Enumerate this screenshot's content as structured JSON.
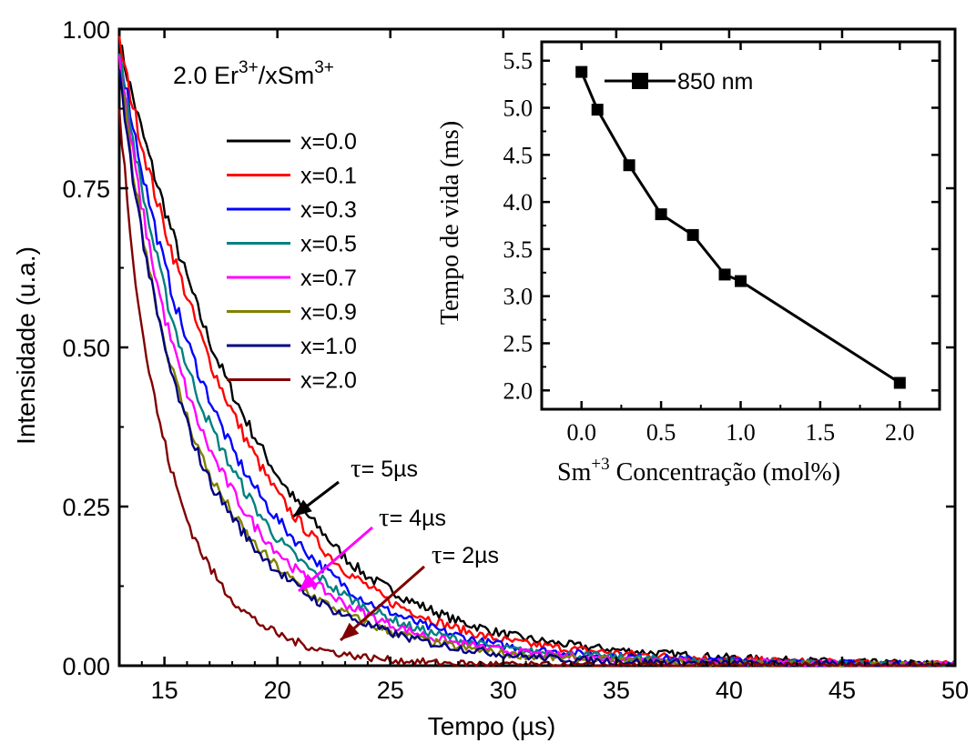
{
  "chart_data": [
    {
      "type": "line",
      "title": "",
      "xlabel": "Tempo (µs)",
      "ylabel": "Intensidade (u.a.)",
      "xlim": [
        13,
        50
      ],
      "ylim": [
        0,
        1.0
      ],
      "xticks": [
        "15",
        "20",
        "25",
        "30",
        "35",
        "40",
        "45",
        "50"
      ],
      "yticks": [
        "0.00",
        "0.25",
        "0.50",
        "0.75",
        "1.00"
      ],
      "legend_title": "2.0 Er3+/xSm3+",
      "legend_placement": "top-left",
      "grid": false,
      "series": [
        {
          "name": "x=0.0",
          "color": "#000000",
          "x": [
            13,
            14,
            15,
            16,
            17,
            18,
            19,
            20,
            21,
            22,
            23,
            24,
            25,
            26,
            27,
            28,
            29,
            30,
            32,
            35,
            40,
            45,
            50
          ],
          "values": [
            0.98,
            0.84,
            0.72,
            0.61,
            0.51,
            0.43,
            0.36,
            0.3,
            0.25,
            0.21,
            0.17,
            0.14,
            0.12,
            0.1,
            0.085,
            0.07,
            0.06,
            0.05,
            0.037,
            0.025,
            0.013,
            0.006,
            0.003
          ]
        },
        {
          "name": "x=0.1",
          "color": "#ff0000",
          "x": [
            13,
            14,
            15,
            16,
            17,
            18,
            19,
            20,
            21,
            22,
            23,
            24,
            25,
            26,
            27,
            28,
            29,
            30,
            32,
            35,
            40,
            45,
            50
          ],
          "values": [
            0.98,
            0.82,
            0.69,
            0.58,
            0.48,
            0.4,
            0.33,
            0.27,
            0.225,
            0.185,
            0.15,
            0.125,
            0.1,
            0.085,
            0.07,
            0.058,
            0.048,
            0.04,
            0.03,
            0.02,
            0.01,
            0.005,
            0.002
          ]
        },
        {
          "name": "x=0.3",
          "color": "#0000ff",
          "x": [
            13,
            14,
            15,
            16,
            17,
            18,
            19,
            20,
            21,
            22,
            23,
            24,
            25,
            26,
            27,
            28,
            29,
            30,
            32,
            35,
            40,
            45,
            50
          ],
          "values": [
            0.97,
            0.78,
            0.63,
            0.51,
            0.42,
            0.34,
            0.28,
            0.23,
            0.19,
            0.155,
            0.125,
            0.1,
            0.085,
            0.07,
            0.057,
            0.047,
            0.038,
            0.032,
            0.023,
            0.015,
            0.008,
            0.004,
            0.002
          ]
        },
        {
          "name": "x=0.5",
          "color": "#008080",
          "x": [
            13,
            14,
            15,
            16,
            17,
            18,
            19,
            20,
            21,
            22,
            23,
            24,
            25,
            26,
            27,
            28,
            29,
            30,
            32,
            35,
            40,
            45,
            50
          ],
          "values": [
            0.96,
            0.75,
            0.59,
            0.47,
            0.38,
            0.31,
            0.25,
            0.2,
            0.165,
            0.135,
            0.11,
            0.09,
            0.074,
            0.06,
            0.05,
            0.041,
            0.033,
            0.027,
            0.02,
            0.013,
            0.007,
            0.003,
            0.001
          ]
        },
        {
          "name": "x=0.7",
          "color": "#ff00ff",
          "x": [
            13,
            14,
            15,
            16,
            17,
            18,
            19,
            20,
            21,
            22,
            23,
            24,
            25,
            26,
            27,
            28,
            29,
            30,
            32,
            35,
            40,
            45,
            50
          ],
          "values": [
            0.95,
            0.72,
            0.55,
            0.43,
            0.34,
            0.275,
            0.22,
            0.18,
            0.145,
            0.12,
            0.097,
            0.08,
            0.065,
            0.053,
            0.043,
            0.035,
            0.029,
            0.024,
            0.017,
            0.011,
            0.006,
            0.003,
            0.001
          ]
        },
        {
          "name": "x=0.9",
          "color": "#808000",
          "x": [
            13,
            14,
            15,
            16,
            17,
            18,
            19,
            20,
            21,
            22,
            23,
            24,
            25,
            26,
            27,
            28,
            29,
            30,
            32,
            35,
            40,
            45,
            50
          ],
          "values": [
            0.94,
            0.69,
            0.51,
            0.39,
            0.3,
            0.24,
            0.19,
            0.155,
            0.125,
            0.1,
            0.082,
            0.066,
            0.054,
            0.044,
            0.036,
            0.029,
            0.024,
            0.019,
            0.013,
            0.008,
            0.004,
            0.002,
            0.001
          ]
        },
        {
          "name": "x=1.0",
          "color": "#000080",
          "x": [
            13,
            14,
            15,
            16,
            17,
            18,
            19,
            20,
            21,
            22,
            23,
            24,
            25,
            26,
            27,
            28,
            29,
            30,
            32,
            35,
            40,
            45,
            50
          ],
          "values": [
            0.93,
            0.68,
            0.5,
            0.38,
            0.29,
            0.235,
            0.185,
            0.15,
            0.12,
            0.097,
            0.079,
            0.064,
            0.052,
            0.042,
            0.034,
            0.028,
            0.023,
            0.018,
            0.012,
            0.007,
            0.004,
            0.002,
            0.001
          ]
        },
        {
          "name": "x=2.0",
          "color": "#800000",
          "x": [
            13,
            14,
            15,
            16,
            17,
            18,
            19,
            20,
            21,
            22,
            23,
            24,
            25,
            26,
            27,
            28,
            29,
            30,
            32,
            35,
            40,
            45,
            50
          ],
          "values": [
            0.88,
            0.53,
            0.35,
            0.23,
            0.155,
            0.105,
            0.072,
            0.05,
            0.035,
            0.025,
            0.018,
            0.013,
            0.009,
            0.007,
            0.005,
            0.004,
            0.003,
            0.002,
            0.001,
            0.0,
            0.0,
            0.0,
            0.0
          ]
        }
      ],
      "annotations": [
        {
          "text": "τ= 5µs",
          "color": "#000000"
        },
        {
          "text": "τ= 4µs",
          "color": "#ff00ff"
        },
        {
          "text": "τ= 2µs",
          "color": "#800000"
        }
      ]
    },
    {
      "type": "line",
      "title": "",
      "xlabel": "Sm+3 Concentração (mol%)",
      "ylabel": "Tempo de vida (ms)",
      "xlim": [
        -0.25,
        2.25
      ],
      "ylim": [
        1.8,
        5.7
      ],
      "xticks": [
        "0.0",
        "0.5",
        "1.0",
        "1.5",
        "2.0"
      ],
      "yticks": [
        "2.0",
        "2.5",
        "3.0",
        "3.5",
        "4.0",
        "4.5",
        "5.0",
        "5.5"
      ],
      "legend_placement": "top-center",
      "series": [
        {
          "name": "850 nm",
          "color": "#000000",
          "marker": "square",
          "x": [
            0.0,
            0.1,
            0.3,
            0.5,
            0.7,
            0.9,
            1.0,
            2.0
          ],
          "values": [
            5.38,
            4.98,
            4.39,
            3.87,
            3.65,
            3.23,
            3.16,
            2.08
          ]
        }
      ]
    }
  ],
  "labels": {
    "main_xlabel_prefix": "Tempo (",
    "main_xlabel_unit": "µs",
    "main_xlabel_suffix": ")",
    "main_ylabel": "Intensidade (u.a.)",
    "legend_title_base": "2.0 Er",
    "legend_title_sup1": "3+",
    "legend_title_mid": "/xSm",
    "legend_title_sup2": "3+",
    "inset_ylabel": "Tempo de vida (ms)",
    "inset_xlabel_base": "Sm",
    "inset_xlabel_sup": "+3",
    "inset_xlabel_rest": " Concentração (mol%)",
    "inset_legend": "850 nm",
    "tau_symbol": "τ",
    "tau1_rest": "= 5µs",
    "tau2_rest": "= 4µs",
    "tau3_rest": "= 2µs"
  }
}
